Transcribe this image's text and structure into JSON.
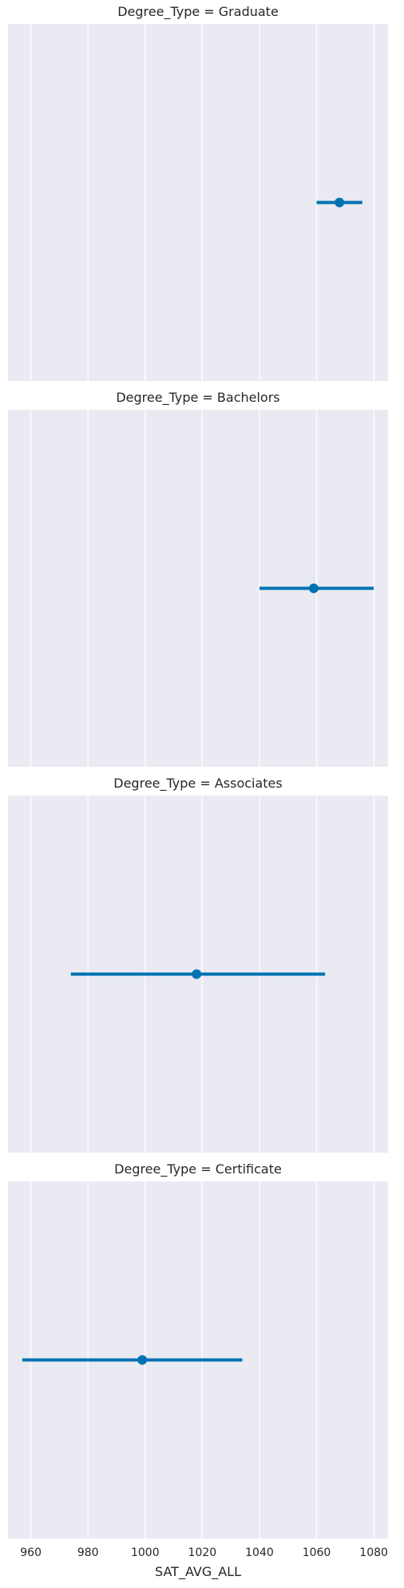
{
  "chart_data": {
    "type": "pointplot",
    "xlabel": "SAT_AVG_ALL",
    "xlim": [
      952,
      1085
    ],
    "xticks": [
      960,
      980,
      1000,
      1020,
      1040,
      1060,
      1080
    ],
    "grid": true,
    "colors": {
      "background": "#eaeaf2",
      "grid": "#ffffff",
      "series": "#0072b2"
    },
    "facets": [
      {
        "title": "Degree_Type = Graduate",
        "mean": 1068,
        "ci": [
          1060,
          1076
        ]
      },
      {
        "title": "Degree_Type = Bachelors",
        "mean": 1059,
        "ci": [
          1040,
          1080
        ]
      },
      {
        "title": "Degree_Type = Associates",
        "mean": 1018,
        "ci": [
          974,
          1063
        ]
      },
      {
        "title": "Degree_Type = Certificate",
        "mean": 999,
        "ci": [
          957,
          1034
        ]
      }
    ]
  }
}
